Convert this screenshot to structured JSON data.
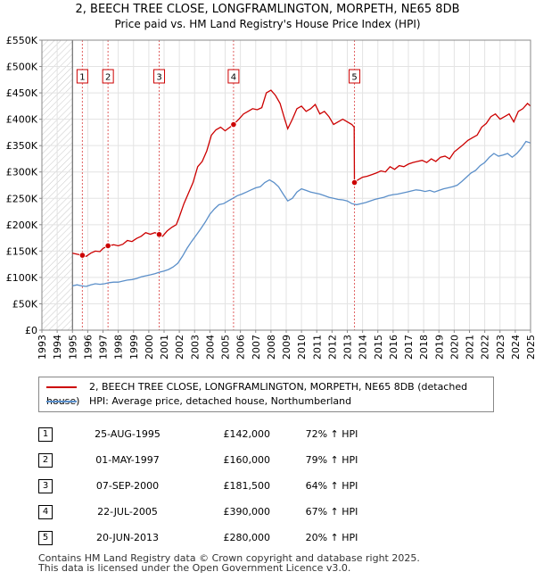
{
  "title": "2, BEECH TREE CLOSE, LONGFRAMLINGTON, MORPETH, NE65 8DB",
  "subtitle": "Price paid vs. HM Land Registry's House Price Index (HPI)",
  "chart_data": {
    "type": "line",
    "xlim": [
      1993,
      2025
    ],
    "ylim": [
      0,
      550000
    ],
    "x_ticks": [
      "1993",
      "1994",
      "1995",
      "1996",
      "1997",
      "1998",
      "1999",
      "2000",
      "2001",
      "2002",
      "2003",
      "2004",
      "2005",
      "2006",
      "2007",
      "2008",
      "2009",
      "2010",
      "2011",
      "2012",
      "2013",
      "2014",
      "2015",
      "2016",
      "2017",
      "2018",
      "2019",
      "2020",
      "2021",
      "2022",
      "2023",
      "2024",
      "2025"
    ],
    "y_ticks": [
      {
        "value": 0,
        "label": "£0"
      },
      {
        "value": 50000,
        "label": "£50K"
      },
      {
        "value": 100000,
        "label": "£100K"
      },
      {
        "value": 150000,
        "label": "£150K"
      },
      {
        "value": 200000,
        "label": "£200K"
      },
      {
        "value": 250000,
        "label": "£250K"
      },
      {
        "value": 300000,
        "label": "£300K"
      },
      {
        "value": 350000,
        "label": "£350K"
      },
      {
        "value": 400000,
        "label": "£400K"
      },
      {
        "value": 450000,
        "label": "£450K"
      },
      {
        "value": 500000,
        "label": "£500K"
      },
      {
        "value": 550000,
        "label": "£550K"
      }
    ],
    "grid": true,
    "hatched_region": [
      1993,
      1995
    ],
    "series": [
      {
        "name": "2, BEECH TREE CLOSE, LONGFRAMLINGTON, MORPETH, NE65 8DB (detached house)",
        "color": "#cc0000",
        "points": [
          [
            1995.0,
            146000
          ],
          [
            1995.3,
            144000
          ],
          [
            1995.65,
            142000
          ],
          [
            1995.9,
            140000
          ],
          [
            1996.2,
            146000
          ],
          [
            1996.5,
            150000
          ],
          [
            1996.8,
            149000
          ],
          [
            1997.0,
            155000
          ],
          [
            1997.33,
            160000
          ],
          [
            1997.7,
            162000
          ],
          [
            1998.0,
            160000
          ],
          [
            1998.3,
            163000
          ],
          [
            1998.6,
            170000
          ],
          [
            1998.9,
            168000
          ],
          [
            1999.2,
            174000
          ],
          [
            1999.5,
            178000
          ],
          [
            1999.8,
            185000
          ],
          [
            2000.1,
            182000
          ],
          [
            2000.4,
            185000
          ],
          [
            2000.68,
            181500
          ],
          [
            2000.9,
            178000
          ],
          [
            2001.2,
            188000
          ],
          [
            2001.5,
            195000
          ],
          [
            2001.8,
            200000
          ],
          [
            2002.0,
            215000
          ],
          [
            2002.3,
            240000
          ],
          [
            2002.6,
            260000
          ],
          [
            2002.9,
            280000
          ],
          [
            2003.2,
            310000
          ],
          [
            2003.5,
            320000
          ],
          [
            2003.8,
            340000
          ],
          [
            2004.1,
            370000
          ],
          [
            2004.4,
            380000
          ],
          [
            2004.7,
            385000
          ],
          [
            2005.0,
            378000
          ],
          [
            2005.55,
            390000
          ],
          [
            2005.9,
            400000
          ],
          [
            2006.2,
            410000
          ],
          [
            2006.5,
            415000
          ],
          [
            2006.8,
            420000
          ],
          [
            2007.1,
            418000
          ],
          [
            2007.4,
            422000
          ],
          [
            2007.7,
            450000
          ],
          [
            2008.0,
            455000
          ],
          [
            2008.3,
            445000
          ],
          [
            2008.6,
            430000
          ],
          [
            2008.9,
            400000
          ],
          [
            2009.1,
            382000
          ],
          [
            2009.4,
            400000
          ],
          [
            2009.7,
            420000
          ],
          [
            2010.0,
            425000
          ],
          [
            2010.3,
            415000
          ],
          [
            2010.6,
            420000
          ],
          [
            2010.9,
            428000
          ],
          [
            2011.2,
            410000
          ],
          [
            2011.5,
            415000
          ],
          [
            2011.8,
            405000
          ],
          [
            2012.1,
            390000
          ],
          [
            2012.4,
            395000
          ],
          [
            2012.7,
            400000
          ],
          [
            2013.0,
            395000
          ],
          [
            2013.3,
            390000
          ],
          [
            2013.45,
            385000
          ],
          [
            2013.47,
            280000
          ],
          [
            2013.7,
            285000
          ],
          [
            2014.0,
            290000
          ],
          [
            2014.3,
            292000
          ],
          [
            2014.6,
            295000
          ],
          [
            2014.9,
            298000
          ],
          [
            2015.2,
            302000
          ],
          [
            2015.5,
            300000
          ],
          [
            2015.8,
            310000
          ],
          [
            2016.1,
            305000
          ],
          [
            2016.4,
            312000
          ],
          [
            2016.7,
            310000
          ],
          [
            2017.0,
            315000
          ],
          [
            2017.3,
            318000
          ],
          [
            2017.6,
            320000
          ],
          [
            2017.9,
            322000
          ],
          [
            2018.2,
            318000
          ],
          [
            2018.5,
            325000
          ],
          [
            2018.8,
            320000
          ],
          [
            2019.1,
            328000
          ],
          [
            2019.4,
            330000
          ],
          [
            2019.7,
            325000
          ],
          [
            2020.0,
            338000
          ],
          [
            2020.3,
            345000
          ],
          [
            2020.6,
            352000
          ],
          [
            2020.9,
            360000
          ],
          [
            2021.2,
            365000
          ],
          [
            2021.5,
            370000
          ],
          [
            2021.8,
            385000
          ],
          [
            2022.1,
            392000
          ],
          [
            2022.4,
            405000
          ],
          [
            2022.7,
            410000
          ],
          [
            2023.0,
            400000
          ],
          [
            2023.3,
            405000
          ],
          [
            2023.6,
            410000
          ],
          [
            2023.9,
            395000
          ],
          [
            2024.2,
            415000
          ],
          [
            2024.5,
            420000
          ],
          [
            2024.8,
            430000
          ],
          [
            2025.0,
            425000
          ]
        ]
      },
      {
        "name": "HPI: Average price, detached house, Northumberland",
        "color": "#5b8fc9",
        "points": [
          [
            1995.0,
            84000
          ],
          [
            1995.3,
            86000
          ],
          [
            1995.6,
            84000
          ],
          [
            1995.9,
            83000
          ],
          [
            1996.2,
            86000
          ],
          [
            1996.5,
            88000
          ],
          [
            1996.8,
            87000
          ],
          [
            1997.1,
            88000
          ],
          [
            1997.4,
            90000
          ],
          [
            1997.7,
            91000
          ],
          [
            1998.0,
            91000
          ],
          [
            1998.3,
            93000
          ],
          [
            1998.6,
            95000
          ],
          [
            1998.9,
            96000
          ],
          [
            1999.2,
            98000
          ],
          [
            1999.5,
            101000
          ],
          [
            1999.8,
            103000
          ],
          [
            2000.1,
            105000
          ],
          [
            2000.4,
            107000
          ],
          [
            2000.7,
            110000
          ],
          [
            2001.0,
            112000
          ],
          [
            2001.3,
            115000
          ],
          [
            2001.6,
            120000
          ],
          [
            2001.9,
            127000
          ],
          [
            2002.2,
            140000
          ],
          [
            2002.5,
            155000
          ],
          [
            2002.8,
            168000
          ],
          [
            2003.1,
            180000
          ],
          [
            2003.4,
            192000
          ],
          [
            2003.7,
            205000
          ],
          [
            2004.0,
            220000
          ],
          [
            2004.3,
            230000
          ],
          [
            2004.6,
            238000
          ],
          [
            2004.9,
            240000
          ],
          [
            2005.2,
            245000
          ],
          [
            2005.5,
            250000
          ],
          [
            2005.8,
            255000
          ],
          [
            2006.1,
            258000
          ],
          [
            2006.4,
            262000
          ],
          [
            2006.7,
            266000
          ],
          [
            2007.0,
            270000
          ],
          [
            2007.3,
            272000
          ],
          [
            2007.6,
            280000
          ],
          [
            2007.9,
            285000
          ],
          [
            2008.2,
            280000
          ],
          [
            2008.5,
            272000
          ],
          [
            2008.8,
            258000
          ],
          [
            2009.1,
            245000
          ],
          [
            2009.4,
            250000
          ],
          [
            2009.7,
            262000
          ],
          [
            2010.0,
            268000
          ],
          [
            2010.3,
            265000
          ],
          [
            2010.6,
            262000
          ],
          [
            2010.9,
            260000
          ],
          [
            2011.2,
            258000
          ],
          [
            2011.5,
            255000
          ],
          [
            2011.8,
            252000
          ],
          [
            2012.1,
            250000
          ],
          [
            2012.4,
            248000
          ],
          [
            2012.7,
            247000
          ],
          [
            2013.0,
            245000
          ],
          [
            2013.3,
            240000
          ],
          [
            2013.6,
            238000
          ],
          [
            2013.9,
            240000
          ],
          [
            2014.2,
            242000
          ],
          [
            2014.5,
            245000
          ],
          [
            2014.8,
            248000
          ],
          [
            2015.1,
            250000
          ],
          [
            2015.4,
            252000
          ],
          [
            2015.7,
            255000
          ],
          [
            2016.0,
            257000
          ],
          [
            2016.3,
            258000
          ],
          [
            2016.6,
            260000
          ],
          [
            2016.9,
            262000
          ],
          [
            2017.2,
            264000
          ],
          [
            2017.5,
            266000
          ],
          [
            2017.8,
            265000
          ],
          [
            2018.1,
            263000
          ],
          [
            2018.4,
            265000
          ],
          [
            2018.7,
            262000
          ],
          [
            2019.0,
            265000
          ],
          [
            2019.3,
            268000
          ],
          [
            2019.6,
            270000
          ],
          [
            2019.9,
            272000
          ],
          [
            2020.2,
            275000
          ],
          [
            2020.5,
            282000
          ],
          [
            2020.8,
            290000
          ],
          [
            2021.1,
            298000
          ],
          [
            2021.4,
            303000
          ],
          [
            2021.7,
            312000
          ],
          [
            2022.0,
            318000
          ],
          [
            2022.3,
            328000
          ],
          [
            2022.6,
            335000
          ],
          [
            2022.9,
            330000
          ],
          [
            2023.2,
            332000
          ],
          [
            2023.5,
            335000
          ],
          [
            2023.8,
            328000
          ],
          [
            2024.1,
            335000
          ],
          [
            2024.4,
            345000
          ],
          [
            2024.7,
            358000
          ],
          [
            2025.0,
            355000
          ]
        ]
      }
    ],
    "sales": [
      {
        "label": "1",
        "x": 1995.65,
        "value": 142000
      },
      {
        "label": "2",
        "x": 1997.33,
        "value": 160000
      },
      {
        "label": "3",
        "x": 2000.68,
        "value": 181500
      },
      {
        "label": "4",
        "x": 2005.55,
        "value": 390000
      },
      {
        "label": "5",
        "x": 2013.47,
        "value": 280000
      }
    ]
  },
  "legend": {
    "red_label": "2, BEECH TREE CLOSE, LONGFRAMLINGTON, MORPETH, NE65 8DB (detached house)",
    "blue_label": "HPI: Average price, detached house, Northumberland"
  },
  "table": [
    {
      "num": "1",
      "date": "25-AUG-1995",
      "price": "£142,000",
      "hpi": "72% ↑ HPI"
    },
    {
      "num": "2",
      "date": "01-MAY-1997",
      "price": "£160,000",
      "hpi": "79% ↑ HPI"
    },
    {
      "num": "3",
      "date": "07-SEP-2000",
      "price": "£181,500",
      "hpi": "64% ↑ HPI"
    },
    {
      "num": "4",
      "date": "22-JUL-2005",
      "price": "£390,000",
      "hpi": "67% ↑ HPI"
    },
    {
      "num": "5",
      "date": "20-JUN-2013",
      "price": "£280,000",
      "hpi": "20% ↑ HPI"
    }
  ],
  "footer": {
    "line1": "Contains HM Land Registry data © Crown copyright and database right 2025.",
    "line2": "This data is licensed under the Open Government Licence v3.0."
  }
}
